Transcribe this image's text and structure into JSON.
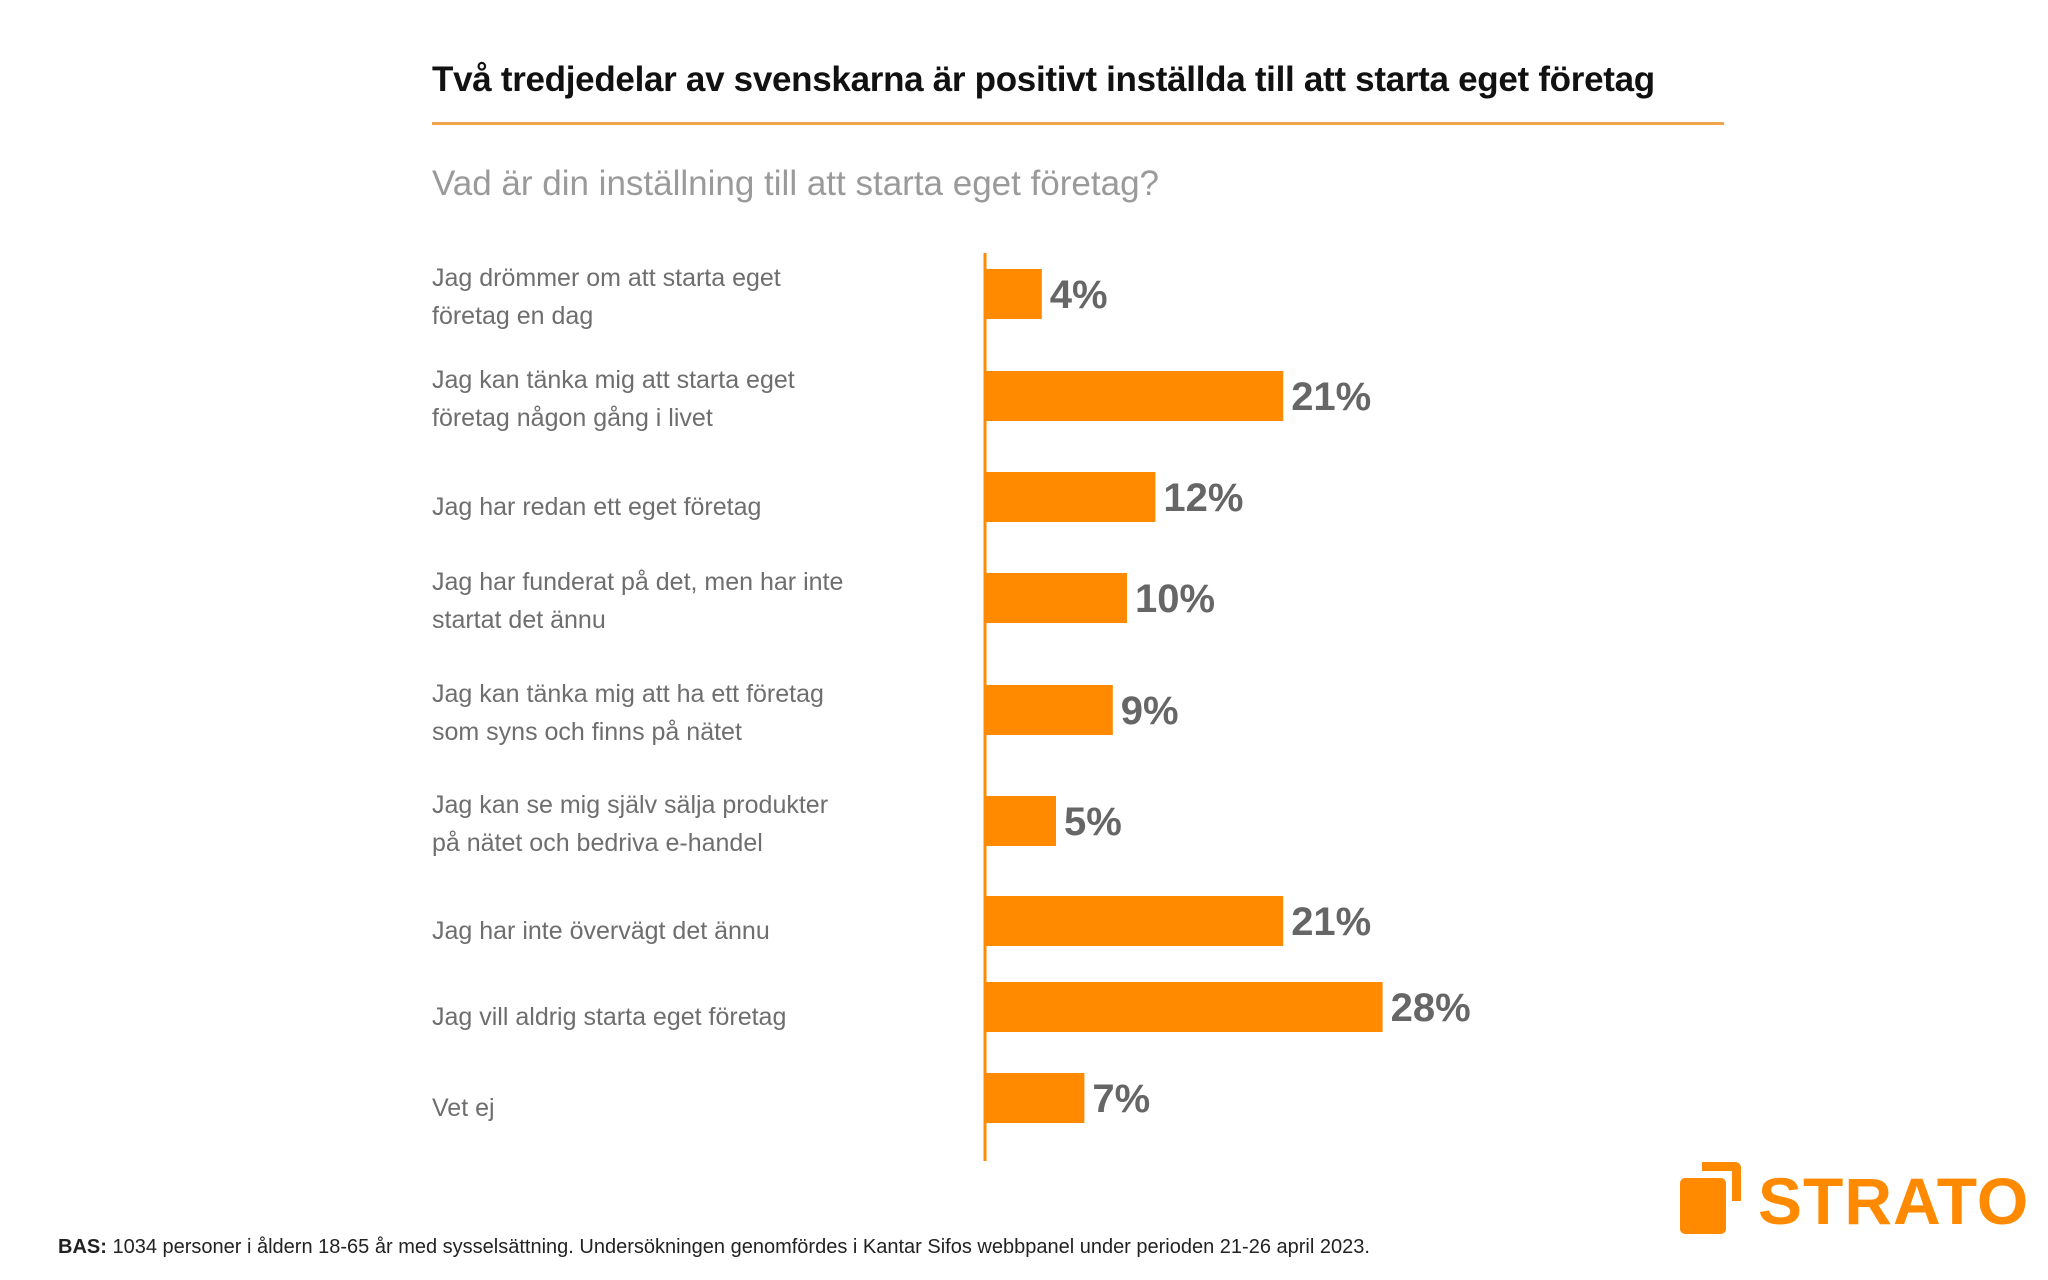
{
  "brand": {
    "name": "STRATO",
    "accent_color": "#ff8a00",
    "rule_color": "#f0a54a"
  },
  "footnote": {
    "prefix": "BAS:",
    "text": " 1034 personer i åldern 18-65 år med sysselsättning. Undersökningen genomfördes i Kantar Sifos webbpanel under perioden 21-26 april 2023."
  },
  "chart_data": {
    "type": "bar",
    "orientation": "horizontal",
    "title": "Två tredjedelar av svenskarna är positivt inställda till att starta eget företag",
    "subtitle": "Vad är din inställning till att starta eget företag?",
    "xlabel": "",
    "ylabel": "",
    "unit": "%",
    "xlim": [
      0,
      30
    ],
    "grid": false,
    "legend": "none",
    "bar_color": "#ff8a00",
    "value_label_color": "#666666",
    "categories": [
      [
        "Jag drömmer om att starta eget",
        "företag en dag"
      ],
      [
        "Jag kan tänka mig att starta eget",
        "företag någon gång i livet"
      ],
      [
        "Jag har redan ett eget företag"
      ],
      [
        "Jag har funderat på det, men har inte",
        "startat det ännu"
      ],
      [
        "Jag kan tänka mig att ha ett företag",
        "som syns och finns på nätet"
      ],
      [
        "Jag kan se mig själv sälja produkter",
        "på nätet och bedriva e-handel"
      ],
      [
        "Jag har inte övervägt det ännu"
      ],
      [
        "Jag vill aldrig starta eget företag"
      ],
      [
        "Vet ej"
      ]
    ],
    "values": [
      4,
      21,
      12,
      10,
      9,
      5,
      21,
      28,
      7
    ],
    "value_labels": [
      "4%",
      "21%",
      "12%",
      "10%",
      "9%",
      "5%",
      "21%",
      "28%",
      "7%"
    ]
  }
}
